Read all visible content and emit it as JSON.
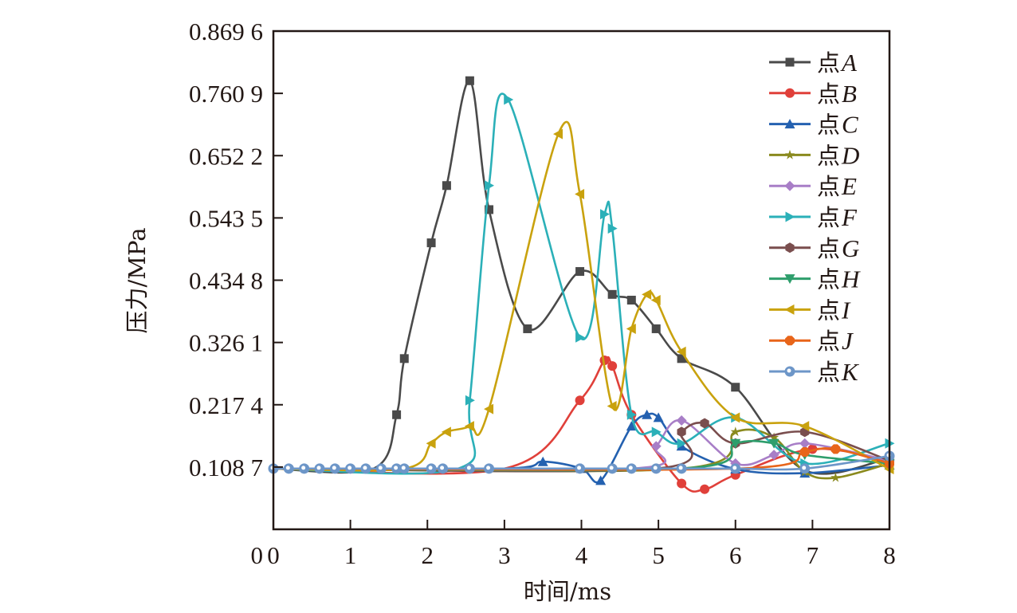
{
  "chart_data": {
    "type": "line",
    "title": "",
    "xlabel": "时间/ms",
    "ylabel": "压力/MPa",
    "xlim": [
      0,
      8
    ],
    "ylim": [
      0,
      0.8696
    ],
    "x_ticks": [
      0,
      1,
      2,
      3,
      4,
      5,
      6,
      7,
      8
    ],
    "x_tick_labels": [
      "0",
      "1",
      "2",
      "3",
      "4",
      "5",
      "6",
      "7",
      "8"
    ],
    "y_ticks": [
      0,
      0.1087,
      0.2174,
      0.3261,
      0.4348,
      0.5435,
      0.6522,
      0.7609,
      0.8696
    ],
    "y_tick_labels": [
      "0",
      "0.108 7",
      "0.217 4",
      "0.326 1",
      "0.434 8",
      "0.543 5",
      "0.652 2",
      "0.760 9",
      "0.869 6"
    ],
    "grid": false,
    "legend_position": "top-right",
    "series": [
      {
        "name": "点A",
        "prefix": "点",
        "letter": "A",
        "color": "#4a4a4a",
        "marker": "square",
        "x": [
          0,
          1.3,
          1.6,
          1.7,
          2.05,
          2.25,
          2.55,
          2.8,
          3.3,
          3.98,
          4.4,
          4.65,
          4.97,
          5.3,
          6.0,
          6.9,
          8.0
        ],
        "y": [
          0.106,
          0.106,
          0.2,
          0.298,
          0.5,
          0.6,
          0.783,
          0.558,
          0.35,
          0.45,
          0.41,
          0.4,
          0.35,
          0.298,
          0.248,
          0.103,
          0.124
        ]
      },
      {
        "name": "点B",
        "prefix": "点",
        "letter": "B",
        "color": "#e0403a",
        "marker": "circle",
        "x": [
          0,
          3.0,
          3.98,
          4.3,
          4.4,
          4.65,
          5.3,
          5.6,
          6.0,
          7.0,
          8.0
        ],
        "y": [
          0.106,
          0.106,
          0.225,
          0.295,
          0.285,
          0.2,
          0.08,
          0.07,
          0.095,
          0.14,
          0.12
        ]
      },
      {
        "name": "点C",
        "prefix": "点",
        "letter": "C",
        "color": "#2461b0",
        "marker": "triangle-up",
        "x": [
          0,
          3.0,
          3.5,
          4.0,
          4.25,
          4.65,
          4.85,
          5.0,
          5.3,
          6.0,
          6.9,
          8.0
        ],
        "y": [
          0.106,
          0.106,
          0.118,
          0.106,
          0.085,
          0.18,
          0.2,
          0.195,
          0.145,
          0.105,
          0.098,
          0.112
        ]
      },
      {
        "name": "点D",
        "prefix": "点",
        "letter": "D",
        "color": "#8a8a1e",
        "marker": "star",
        "x": [
          0,
          5.3,
          6.0,
          6.5,
          6.9,
          7.3,
          8.0
        ],
        "y": [
          0.106,
          0.106,
          0.17,
          0.16,
          0.1,
          0.09,
          0.115
        ]
      },
      {
        "name": "点E",
        "prefix": "点",
        "letter": "E",
        "color": "#a87ec7",
        "marker": "diamond",
        "x": [
          0,
          4.65,
          4.97,
          5.3,
          6.0,
          6.5,
          6.9,
          8.0
        ],
        "y": [
          0.106,
          0.106,
          0.145,
          0.19,
          0.115,
          0.13,
          0.15,
          0.12
        ]
      },
      {
        "name": "点F",
        "prefix": "点",
        "letter": "F",
        "color": "#2bb0b8",
        "marker": "triangle-right",
        "x": [
          0,
          2.4,
          2.55,
          2.8,
          3.05,
          3.98,
          4.3,
          4.4,
          4.65,
          4.97,
          5.3,
          6.0,
          6.9,
          8.0
        ],
        "y": [
          0.106,
          0.106,
          0.225,
          0.6,
          0.75,
          0.335,
          0.55,
          0.525,
          0.2,
          0.17,
          0.15,
          0.195,
          0.115,
          0.15
        ]
      },
      {
        "name": "点G",
        "prefix": "点",
        "letter": "G",
        "color": "#7a4e4e",
        "marker": "hexagon",
        "x": [
          0,
          4.97,
          5.3,
          5.6,
          6.0,
          6.9,
          8.0
        ],
        "y": [
          0.106,
          0.106,
          0.17,
          0.185,
          0.15,
          0.17,
          0.12
        ]
      },
      {
        "name": "点H",
        "prefix": "点",
        "letter": "H",
        "color": "#2e9e6c",
        "marker": "triangle-down",
        "x": [
          0,
          5.3,
          6.0,
          6.5,
          6.9,
          8.0
        ],
        "y": [
          0.106,
          0.106,
          0.15,
          0.15,
          0.13,
          0.115
        ]
      },
      {
        "name": "点I",
        "prefix": "点",
        "letter": "I",
        "color": "#c9a20e",
        "marker": "triangle-left",
        "x": [
          0,
          1.7,
          2.05,
          2.25,
          2.55,
          2.8,
          3.7,
          3.98,
          4.4,
          4.65,
          4.85,
          4.97,
          5.3,
          6.0,
          6.9,
          8.0
        ],
        "y": [
          0.106,
          0.106,
          0.15,
          0.17,
          0.18,
          0.21,
          0.69,
          0.585,
          0.215,
          0.35,
          0.41,
          0.4,
          0.31,
          0.195,
          0.18,
          0.105
        ]
      },
      {
        "name": "点J",
        "prefix": "点",
        "letter": "J",
        "color": "#e8651a",
        "marker": "octagon",
        "x": [
          0,
          6.0,
          6.9,
          7.3,
          8.0
        ],
        "y": [
          0.106,
          0.106,
          0.135,
          0.14,
          0.115
        ]
      },
      {
        "name": "点K",
        "prefix": "点",
        "letter": "K",
        "color": "#6d96c8",
        "marker": "ring",
        "x": [
          0,
          0.2,
          0.4,
          0.6,
          0.8,
          1.0,
          1.2,
          1.4,
          1.6,
          1.7,
          2.05,
          2.2,
          2.55,
          2.8,
          3.98,
          4.4,
          4.65,
          4.97,
          5.3,
          6.0,
          6.9,
          8.0
        ],
        "y": [
          0.106,
          0.106,
          0.106,
          0.106,
          0.106,
          0.106,
          0.106,
          0.106,
          0.106,
          0.106,
          0.106,
          0.106,
          0.106,
          0.106,
          0.106,
          0.106,
          0.106,
          0.106,
          0.106,
          0.106,
          0.106,
          0.128
        ]
      }
    ]
  }
}
